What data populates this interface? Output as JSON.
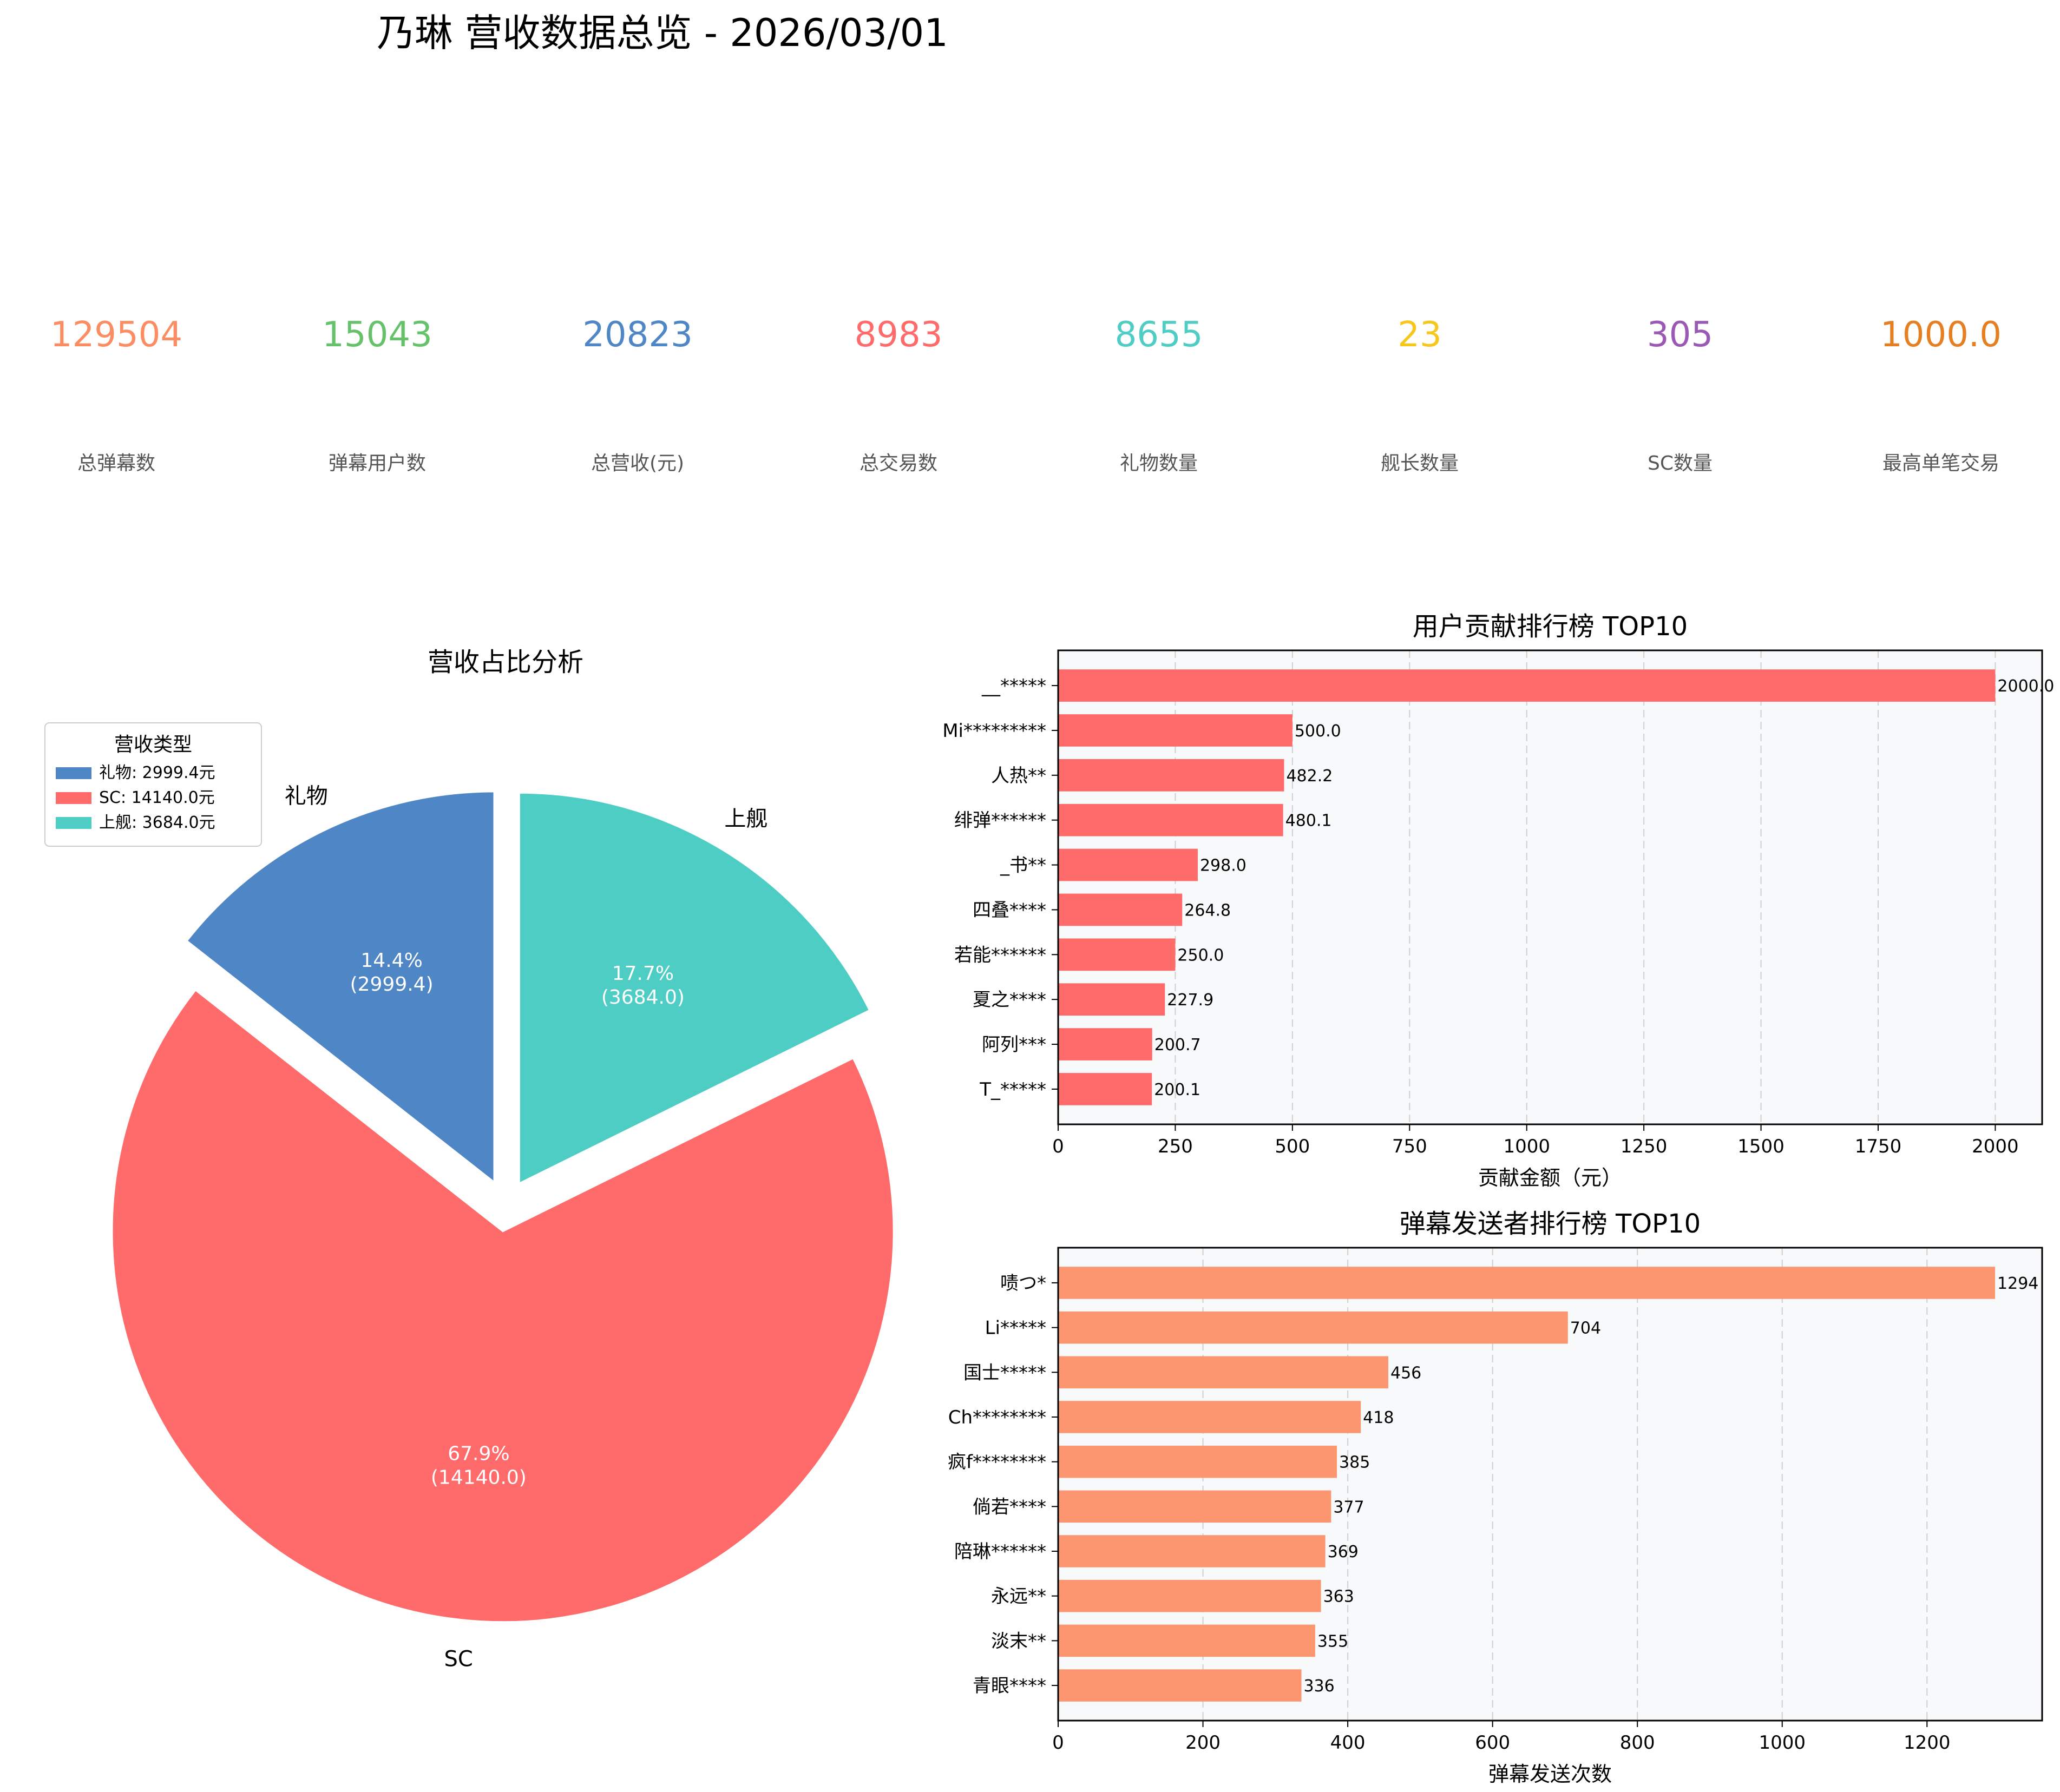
{
  "title": "乃琳 营收数据总览 - 2026/03/01",
  "stats": [
    {
      "value": "129504",
      "label": "总弹幕数",
      "color": "#fc8d62"
    },
    {
      "value": "15043",
      "label": "弹幕用户数",
      "color": "#66c26a"
    },
    {
      "value": "20823",
      "label": "总营收(元)",
      "color": "#4e86c6"
    },
    {
      "value": "8983",
      "label": "总交易数",
      "color": "#ff6b6b"
    },
    {
      "value": "8655",
      "label": "礼物数量",
      "color": "#4ecdc4"
    },
    {
      "value": "23",
      "label": "舰长数量",
      "color": "#f7c71c"
    },
    {
      "value": "305",
      "label": "SC数量",
      "color": "#9b59b6"
    },
    {
      "value": "1000.0",
      "label": "最高单笔交易",
      "color": "#e67e22"
    }
  ],
  "chart_data": [
    {
      "type": "pie",
      "title": "营收占比分析",
      "slices": [
        {
          "label": "礼物",
          "value": 2999.4,
          "pct": "14.4%",
          "inner": "(2999.4)",
          "color": "#4e86c6"
        },
        {
          "label": "SC",
          "value": 14140.0,
          "pct": "67.9%",
          "inner": "(14140.0)",
          "color": "#ff6b6b"
        },
        {
          "label": "上舰",
          "value": 3684.0,
          "pct": "17.7%",
          "inner": "(3684.0)",
          "color": "#4ecdc4"
        }
      ],
      "legend": {
        "title": "营收类型",
        "position": "upper-left",
        "items": [
          "礼物: 2999.4元",
          "SC: 14140.0元",
          "上舰: 3684.0元"
        ]
      }
    },
    {
      "type": "bar",
      "orientation": "horizontal",
      "title": "用户贡献排行榜 TOP10",
      "xlabel": "贡献金额（元）",
      "xlim": [
        0,
        2100
      ],
      "xticks": [
        0,
        250,
        500,
        750,
        1000,
        1250,
        1500,
        1750,
        2000
      ],
      "color": "#ff6b6b",
      "grid": "x-dashed",
      "categories": [
        "__*****",
        "Mi*********",
        "人热**",
        "绯弹******",
        "_书**",
        "四叠****",
        "若能******",
        "夏之****",
        "阿列***",
        "T_*****"
      ],
      "values": [
        2000.0,
        500.0,
        482.2,
        480.1,
        298.0,
        264.8,
        250.0,
        227.9,
        200.7,
        200.1
      ],
      "labels": [
        "2000.0",
        "500.0",
        "482.2",
        "480.1",
        "298.0",
        "264.8",
        "250.0",
        "227.9",
        "200.7",
        "200.1"
      ]
    },
    {
      "type": "bar",
      "orientation": "horizontal",
      "title": "弹幕发送者排行榜 TOP10",
      "xlabel": "弹幕发送次数",
      "xlim": [
        0,
        1359
      ],
      "xticks": [
        0,
        200,
        400,
        600,
        800,
        1000,
        1200
      ],
      "color": "#fc9670",
      "grid": "x-dashed",
      "categories": [
        "啧つ*",
        "Li*****",
        "国士*****",
        "Ch********",
        "疯f********",
        "倘若****",
        "陪琳******",
        "永远**",
        "淡末**",
        "青眼****"
      ],
      "values": [
        1294,
        704,
        456,
        418,
        385,
        377,
        369,
        363,
        355,
        336
      ],
      "labels": [
        "1294",
        "704",
        "456",
        "418",
        "385",
        "377",
        "369",
        "363",
        "355",
        "336"
      ]
    }
  ]
}
